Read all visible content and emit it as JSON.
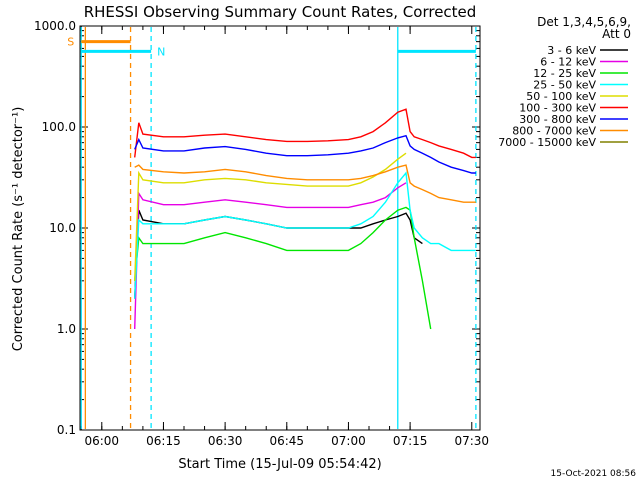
{
  "chart_data": {
    "type": "line",
    "title": "RHESSI Observing Summary Count Rates, Corrected",
    "xlabel": "Start Time (15-Jul-09 05:54:42)",
    "ylabel": "Corrected Count Rate (s⁻¹ detector⁻¹)",
    "y_scale": "log",
    "ylim": [
      0.1,
      1000
    ],
    "xlim": [
      "05:54:42",
      "07:32:00"
    ],
    "x_ticks": [
      "06:00",
      "06:15",
      "06:30",
      "06:45",
      "07:00",
      "07:15",
      "07:30"
    ],
    "y_ticks": [
      "0.1",
      "1.0",
      "10.0",
      "100.0",
      "1000.0"
    ],
    "legend_title": [
      "Det 1,3,4,5,6,9,",
      "Att 0"
    ],
    "legend_position": "right",
    "footer": "15-Oct-2021 08:56",
    "flags": [
      {
        "label": "S",
        "color": "#ff8c00",
        "value": 700,
        "segments": [
          [
            "05:55",
            "06:07"
          ]
        ]
      },
      {
        "label": "N",
        "color": "#00e5ff",
        "value": 560,
        "segments": [
          [
            "05:55",
            "06:12"
          ],
          [
            "07:12",
            "07:31"
          ]
        ]
      }
    ],
    "vertical_markers": [
      {
        "time": "05:55",
        "color": "#00e5ff",
        "style": "solid"
      },
      {
        "time": "05:56",
        "color": "#ff8c00",
        "style": "solid"
      },
      {
        "time": "06:07",
        "color": "#ff8c00",
        "style": "dashed"
      },
      {
        "time": "06:12",
        "color": "#00e5ff",
        "style": "dashed"
      },
      {
        "time": "07:12",
        "color": "#00e5ff",
        "style": "solid"
      },
      {
        "time": "07:31",
        "color": "#00e5ff",
        "style": "dashed"
      }
    ],
    "x": [
      "06:08",
      "06:09",
      "06:10",
      "06:15",
      "06:20",
      "06:25",
      "06:30",
      "06:35",
      "06:40",
      "06:45",
      "06:50",
      "06:55",
      "07:00",
      "07:03",
      "07:06",
      "07:09",
      "07:12",
      "07:14",
      "07:15",
      "07:16",
      "07:18",
      "07:20",
      "07:22",
      "07:25",
      "07:28",
      "07:30",
      "07:31"
    ],
    "series": [
      {
        "name": "3 - 6 keV",
        "color": "#000000",
        "values": [
          2,
          15,
          12,
          11,
          11,
          12,
          13,
          12,
          11,
          10,
          10,
          10,
          10,
          10,
          11,
          12,
          13,
          14,
          12,
          8,
          7,
          null,
          null,
          null,
          null,
          null,
          null
        ]
      },
      {
        "name": "6 - 12 keV",
        "color": "#e600e6",
        "values": [
          1,
          22,
          19,
          17,
          17,
          18,
          19,
          18,
          17,
          16,
          16,
          16,
          16,
          17,
          18,
          20,
          25,
          28,
          null,
          null,
          null,
          null,
          null,
          null,
          null,
          null,
          null
        ]
      },
      {
        "name": "12 - 25 keV",
        "color": "#00e600",
        "values": [
          3,
          8,
          7,
          7,
          7,
          8,
          9,
          8,
          7,
          6,
          6,
          6,
          6,
          7,
          9,
          12,
          15,
          16,
          15,
          8,
          3,
          1,
          null,
          null,
          null,
          null,
          null
        ]
      },
      {
        "name": "25 - 50 keV",
        "color": "#00ffff",
        "values": [
          2,
          12,
          11,
          11,
          11,
          12,
          13,
          12,
          11,
          10,
          10,
          10,
          10,
          11,
          13,
          18,
          28,
          35,
          15,
          10,
          8,
          7,
          7,
          6,
          6,
          6,
          6
        ]
      },
      {
        "name": "50 - 100 keV",
        "color": "#dddd00",
        "values": [
          3,
          35,
          30,
          28,
          28,
          30,
          31,
          30,
          28,
          27,
          26,
          26,
          26,
          28,
          32,
          38,
          48,
          55,
          null,
          null,
          null,
          null,
          null,
          null,
          null,
          null,
          null
        ]
      },
      {
        "name": "100 - 300 keV",
        "color": "#ff0000",
        "values": [
          50,
          110,
          85,
          80,
          80,
          83,
          85,
          80,
          75,
          72,
          72,
          73,
          75,
          80,
          90,
          110,
          140,
          150,
          90,
          80,
          75,
          70,
          65,
          60,
          55,
          50,
          50
        ]
      },
      {
        "name": "300 - 800 keV",
        "color": "#0000ff",
        "values": [
          60,
          75,
          62,
          58,
          58,
          62,
          64,
          60,
          55,
          52,
          52,
          53,
          55,
          58,
          62,
          70,
          78,
          82,
          65,
          60,
          55,
          50,
          45,
          40,
          37,
          35,
          35
        ]
      },
      {
        "name": "800 - 7000 keV",
        "color": "#ff8c00",
        "values": [
          40,
          42,
          38,
          36,
          35,
          36,
          38,
          36,
          33,
          31,
          30,
          30,
          30,
          31,
          33,
          36,
          40,
          42,
          28,
          26,
          24,
          22,
          20,
          19,
          18,
          18,
          18
        ]
      },
      {
        "name": "7000 - 15000 keV",
        "color": "#808000",
        "values": [
          null,
          null,
          null,
          null,
          null,
          null,
          null,
          null,
          null,
          null,
          null,
          null,
          null,
          null,
          null,
          null,
          null,
          null,
          null,
          null,
          null,
          null,
          null,
          null,
          null,
          null,
          null
        ]
      }
    ]
  }
}
